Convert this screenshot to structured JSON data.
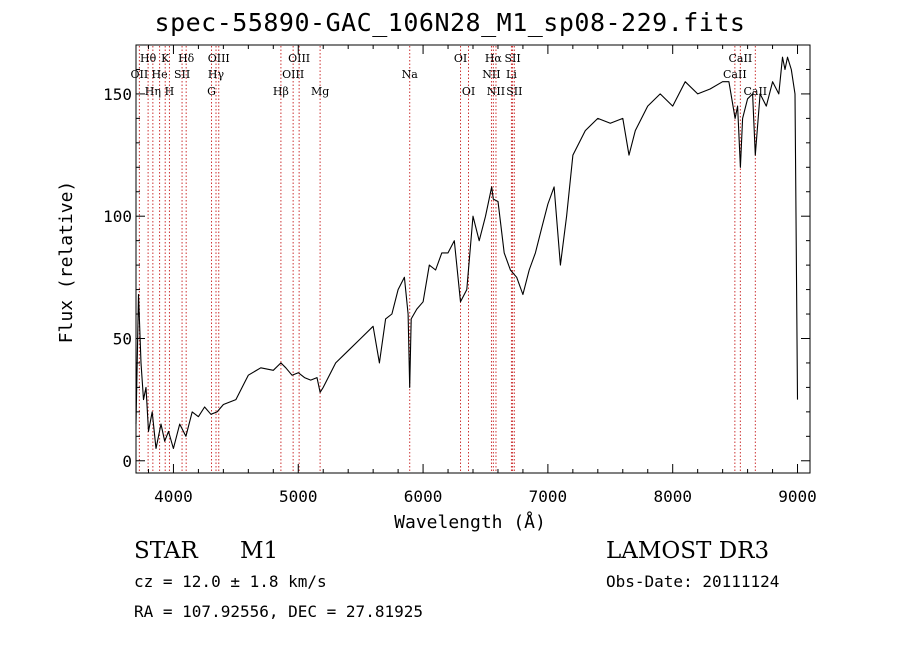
{
  "chart_data": {
    "type": "line",
    "title": "spec-55890-GAC_106N28_M1_sp08-229.fits",
    "xlabel": "Wavelength (Å)",
    "ylabel": "Flux (relative)",
    "xlim": [
      3700,
      9100
    ],
    "ylim": [
      -5,
      170
    ],
    "x_ticks": [
      4000,
      5000,
      6000,
      7000,
      8000,
      9000
    ],
    "y_ticks": [
      0,
      50,
      100,
      150
    ],
    "x_tick_labels": [
      "4000",
      "5000",
      "6000",
      "7000",
      "8000",
      "9000"
    ],
    "y_tick_labels": [
      "0",
      "50",
      "100",
      "150"
    ],
    "series": [
      {
        "name": "flux",
        "x": [
          3700,
          3720,
          3740,
          3760,
          3780,
          3800,
          3830,
          3860,
          3900,
          3930,
          3960,
          4000,
          4050,
          4100,
          4150,
          4200,
          4250,
          4300,
          4350,
          4400,
          4500,
          4600,
          4700,
          4800,
          4861,
          4900,
          4950,
          5000,
          5050,
          5100,
          5150,
          5175,
          5200,
          5300,
          5400,
          5500,
          5600,
          5650,
          5700,
          5750,
          5800,
          5850,
          5880,
          5893,
          5905,
          5950,
          6000,
          6050,
          6100,
          6150,
          6200,
          6250,
          6300,
          6350,
          6400,
          6450,
          6500,
          6550,
          6563,
          6600,
          6650,
          6700,
          6750,
          6800,
          6850,
          6900,
          6950,
          7000,
          7050,
          7100,
          7150,
          7200,
          7300,
          7400,
          7500,
          7600,
          7650,
          7700,
          7750,
          7800,
          7900,
          8000,
          8100,
          8200,
          8300,
          8400,
          8450,
          8500,
          8520,
          8542,
          8560,
          8600,
          8640,
          8662,
          8700,
          8750,
          8800,
          8850,
          8880,
          8900,
          8920,
          8950,
          8980,
          9000
        ],
        "values": [
          15,
          68,
          40,
          25,
          30,
          12,
          20,
          5,
          15,
          8,
          12,
          5,
          15,
          10,
          20,
          18,
          22,
          19,
          20,
          23,
          25,
          35,
          38,
          37,
          40,
          38,
          35,
          36,
          34,
          33,
          34,
          28,
          30,
          40,
          45,
          50,
          55,
          40,
          58,
          60,
          70,
          75,
          60,
          30,
          58,
          62,
          65,
          80,
          78,
          85,
          85,
          90,
          65,
          70,
          100,
          90,
          100,
          112,
          107,
          106,
          85,
          78,
          75,
          68,
          78,
          85,
          95,
          105,
          112,
          80,
          100,
          125,
          135,
          140,
          138,
          140,
          125,
          135,
          140,
          145,
          150,
          145,
          155,
          150,
          152,
          155,
          155,
          140,
          145,
          120,
          140,
          148,
          150,
          125,
          150,
          145,
          155,
          150,
          165,
          160,
          165,
          160,
          150,
          25
        ]
      }
    ],
    "line_markers": [
      {
        "name": "Hθ",
        "wavelength": 3797,
        "row": 1
      },
      {
        "name": "OII",
        "wavelength": 3727,
        "row": 2
      },
      {
        "name": "Hη",
        "wavelength": 3835,
        "row": 3
      },
      {
        "name": "He",
        "wavelength": 3889,
        "row": 2
      },
      {
        "name": "K",
        "wavelength": 3934,
        "row": 1
      },
      {
        "name": "H",
        "wavelength": 3968,
        "row": 3
      },
      {
        "name": "SII",
        "wavelength": 4069,
        "row": 2
      },
      {
        "name": "Hδ",
        "wavelength": 4102,
        "row": 1
      },
      {
        "name": "OIII",
        "wavelength": 4363,
        "row": 1
      },
      {
        "name": "Hγ",
        "wavelength": 4341,
        "row": 2
      },
      {
        "name": "G",
        "wavelength": 4305,
        "row": 3
      },
      {
        "name": "Hβ",
        "wavelength": 4861,
        "row": 3
      },
      {
        "name": "OIII",
        "wavelength": 5007,
        "row": 1
      },
      {
        "name": "OIII",
        "wavelength": 4959,
        "row": 2
      },
      {
        "name": "Mg",
        "wavelength": 5175,
        "row": 3
      },
      {
        "name": "Na",
        "wavelength": 5893,
        "row": 2
      },
      {
        "name": "OI",
        "wavelength": 6300,
        "row": 1
      },
      {
        "name": "OI",
        "wavelength": 6364,
        "row": 3
      },
      {
        "name": "Hα",
        "wavelength": 6563,
        "row": 1
      },
      {
        "name": "NII",
        "wavelength": 6548,
        "row": 2
      },
      {
        "name": "NII",
        "wavelength": 6584,
        "row": 3
      },
      {
        "name": "SII",
        "wavelength": 6717,
        "row": 1
      },
      {
        "name": "Li",
        "wavelength": 6708,
        "row": 2
      },
      {
        "name": "SII",
        "wavelength": 6731,
        "row": 3
      },
      {
        "name": "CaII",
        "wavelength": 8542,
        "row": 1
      },
      {
        "name": "CaII",
        "wavelength": 8498,
        "row": 2
      },
      {
        "name": "CaII",
        "wavelength": 8662,
        "row": 3
      }
    ]
  },
  "info": {
    "object_class": "STAR",
    "subclass": "M1",
    "survey": "LAMOST DR3",
    "redshift_text": "cz = 12.0 ± 1.8 km/s",
    "obs_date_text": "Obs-Date: 20111124",
    "coords_text": "RA = 107.92556, DEC =  27.81925"
  },
  "colors": {
    "line_marker": "#cc3333",
    "spectrum": "#000000",
    "axes": "#000000"
  }
}
